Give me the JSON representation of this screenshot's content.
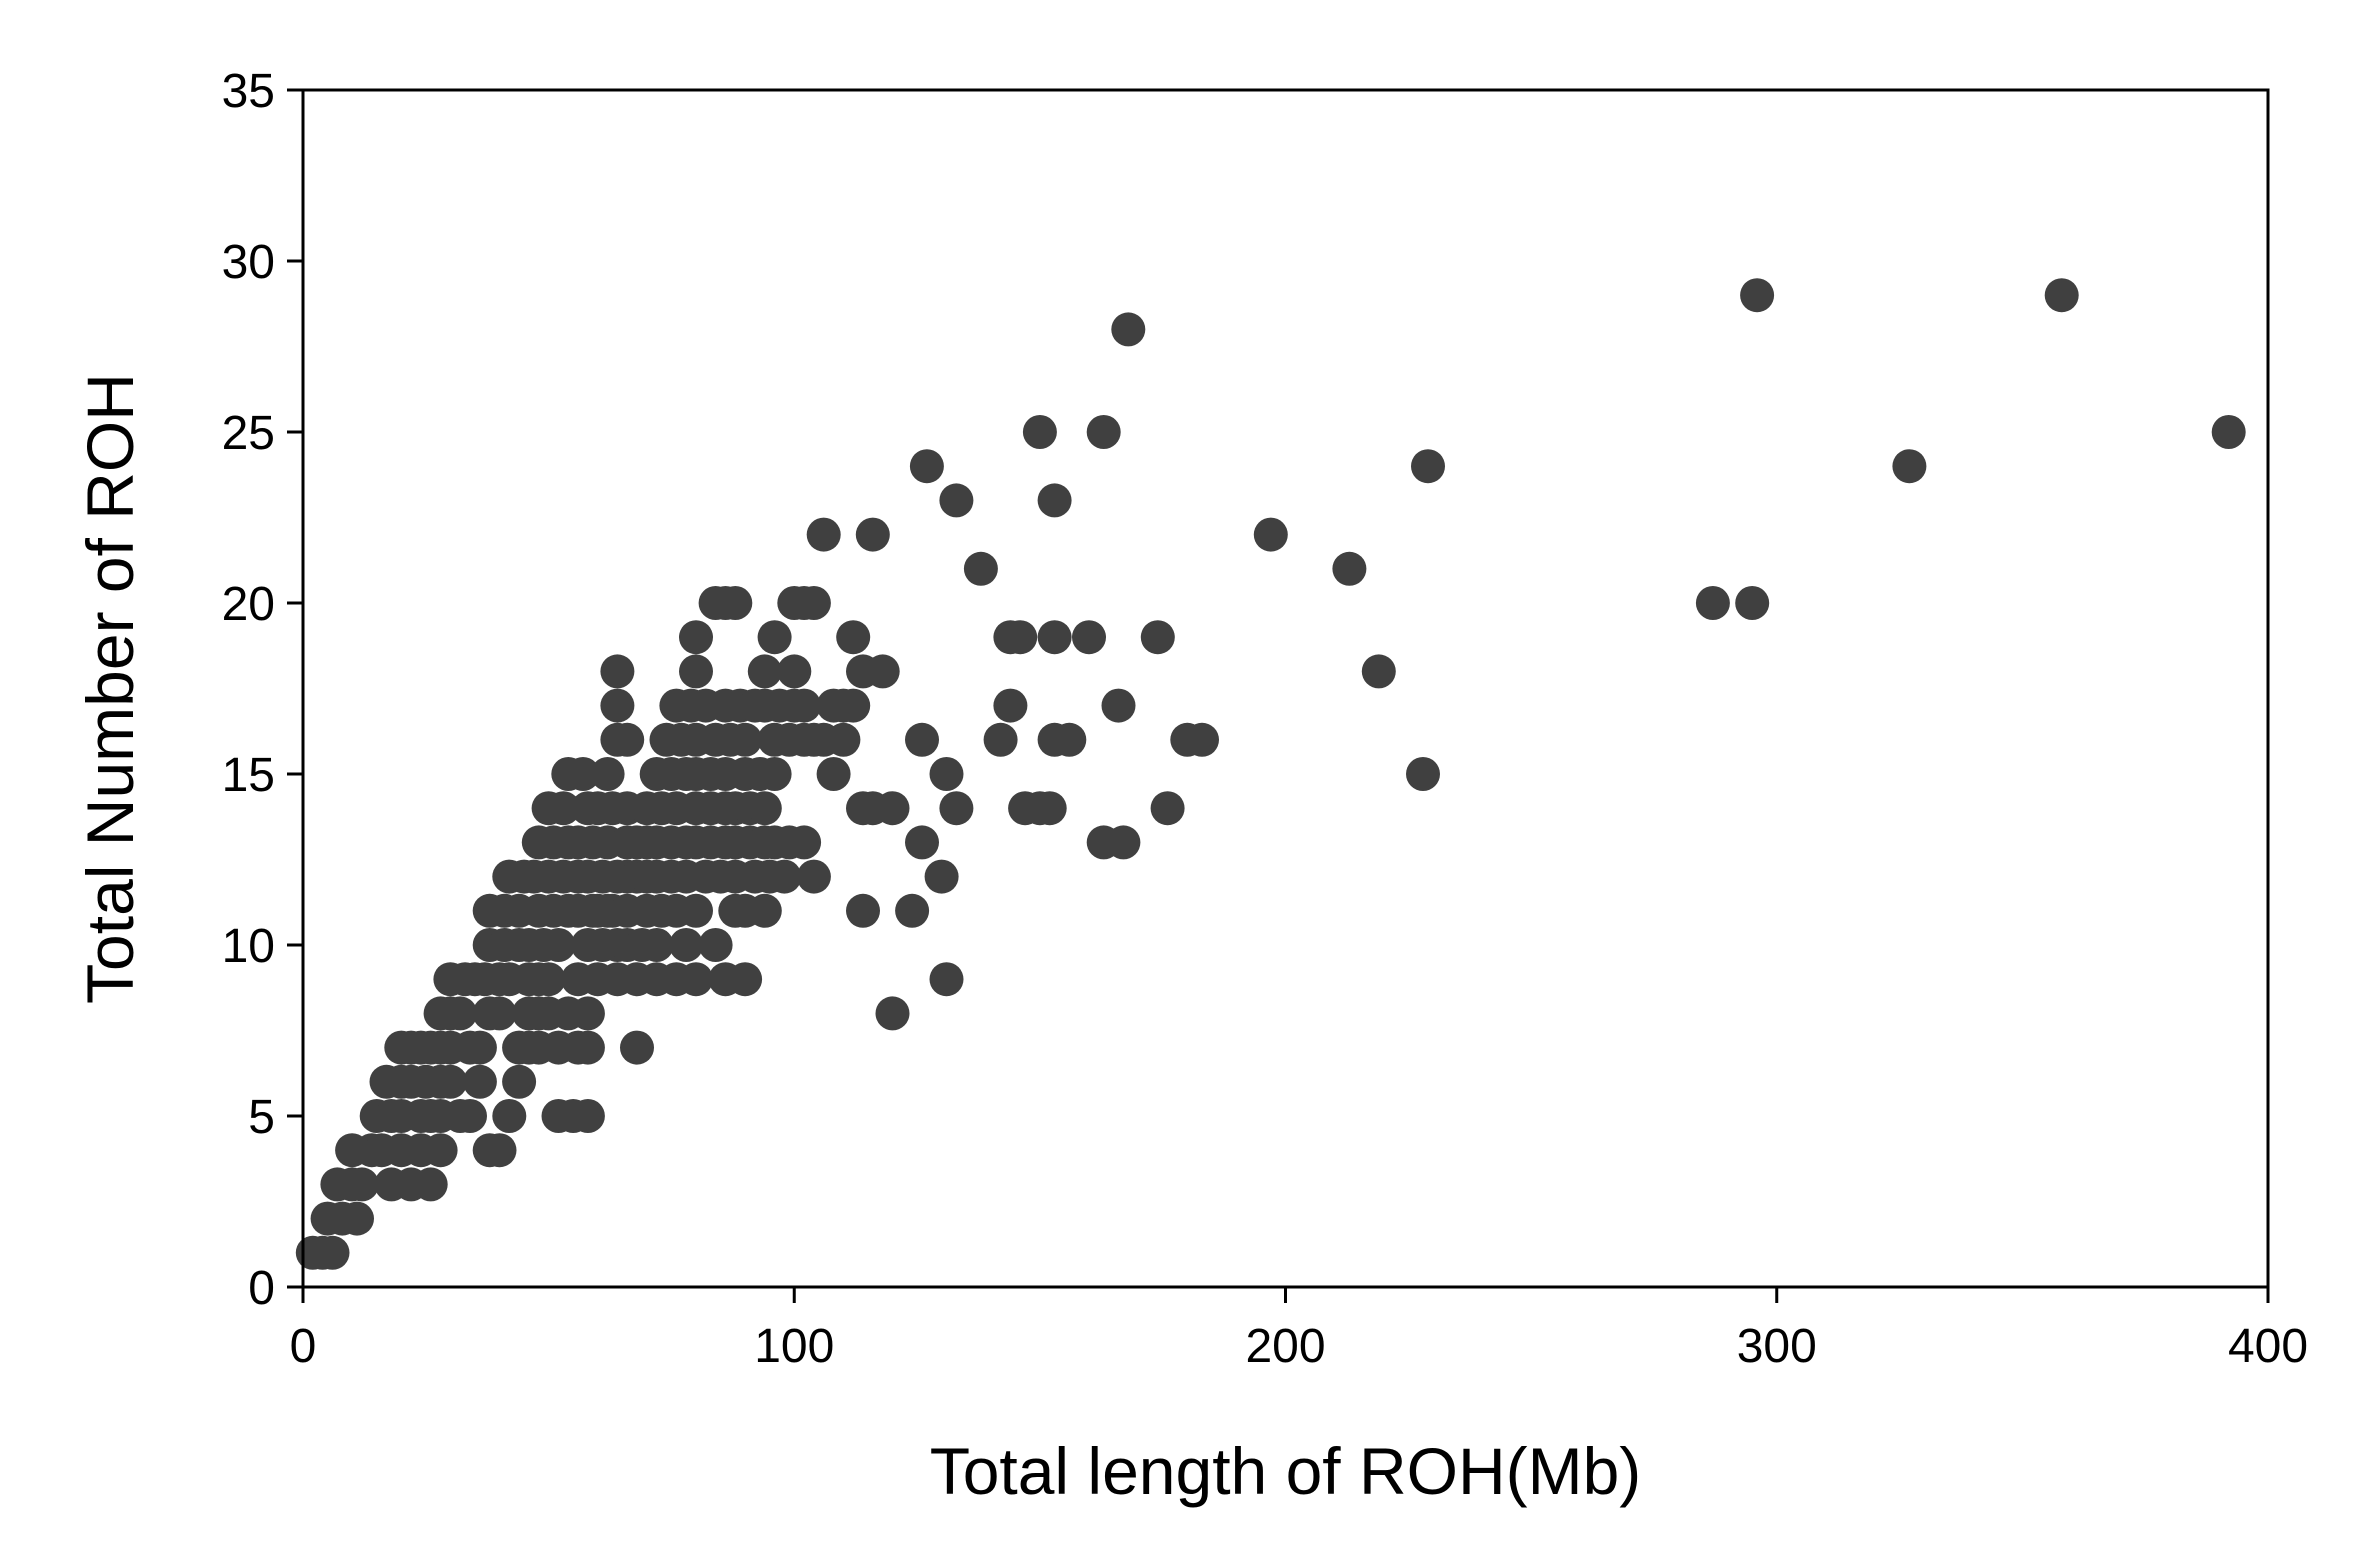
{
  "chart_data": {
    "type": "scatter",
    "title": "",
    "xlabel": "Total length of ROH(Mb)",
    "ylabel": "Total Number of ROH",
    "xlim": [
      0,
      400
    ],
    "ylim": [
      0,
      35
    ],
    "xticks": [
      0,
      100,
      200,
      300,
      400
    ],
    "yticks": [
      0,
      5,
      10,
      15,
      20,
      25,
      30,
      35
    ],
    "grid": false,
    "legend": "none",
    "marker_color": "#404040",
    "points": [
      [
        2,
        1
      ],
      [
        4,
        1
      ],
      [
        6,
        1
      ],
      [
        5,
        2
      ],
      [
        8,
        2
      ],
      [
        11,
        2
      ],
      [
        7,
        3
      ],
      [
        10,
        3
      ],
      [
        12,
        3
      ],
      [
        10,
        4
      ],
      [
        14,
        4
      ],
      [
        16,
        4
      ],
      [
        15,
        5
      ],
      [
        18,
        5
      ],
      [
        20,
        5
      ],
      [
        17,
        6
      ],
      [
        20,
        6
      ],
      [
        22,
        6
      ],
      [
        20,
        7
      ],
      [
        22,
        7
      ],
      [
        24,
        7
      ],
      [
        18,
        3
      ],
      [
        22,
        3
      ],
      [
        26,
        3
      ],
      [
        20,
        4
      ],
      [
        24,
        4
      ],
      [
        28,
        4
      ],
      [
        26,
        5
      ],
      [
        24,
        5
      ],
      [
        28,
        5
      ],
      [
        25,
        6
      ],
      [
        28,
        6
      ],
      [
        30,
        6
      ],
      [
        26,
        7
      ],
      [
        28,
        7
      ],
      [
        30,
        7
      ],
      [
        28,
        8
      ],
      [
        30,
        8
      ],
      [
        32,
        8
      ],
      [
        30,
        9
      ],
      [
        33,
        9
      ],
      [
        35,
        9
      ],
      [
        32,
        5
      ],
      [
        34,
        5
      ],
      [
        36,
        6
      ],
      [
        38,
        4
      ],
      [
        40,
        4
      ],
      [
        34,
        7
      ],
      [
        36,
        7
      ],
      [
        38,
        8
      ],
      [
        40,
        8
      ],
      [
        37,
        9
      ],
      [
        40,
        9
      ],
      [
        42,
        9
      ],
      [
        38,
        10
      ],
      [
        41,
        10
      ],
      [
        44,
        10
      ],
      [
        38,
        11
      ],
      [
        41,
        11
      ],
      [
        44,
        11
      ],
      [
        42,
        12
      ],
      [
        45,
        12
      ],
      [
        47,
        12
      ],
      [
        44,
        7
      ],
      [
        46,
        7
      ],
      [
        48,
        7
      ],
      [
        42,
        5
      ],
      [
        44,
        6
      ],
      [
        46,
        8
      ],
      [
        48,
        8
      ],
      [
        50,
        8
      ],
      [
        46,
        9
      ],
      [
        48,
        9
      ],
      [
        50,
        9
      ],
      [
        46,
        10
      ],
      [
        49,
        10
      ],
      [
        52,
        10
      ],
      [
        48,
        11
      ],
      [
        51,
        11
      ],
      [
        54,
        11
      ],
      [
        50,
        12
      ],
      [
        53,
        12
      ],
      [
        56,
        12
      ],
      [
        48,
        13
      ],
      [
        51,
        13
      ],
      [
        54,
        13
      ],
      [
        50,
        14
      ],
      [
        53,
        14
      ],
      [
        54,
        15
      ],
      [
        57,
        15
      ],
      [
        58,
        14
      ],
      [
        56,
        13
      ],
      [
        59,
        13
      ],
      [
        62,
        13
      ],
      [
        58,
        12
      ],
      [
        61,
        12
      ],
      [
        64,
        12
      ],
      [
        56,
        11
      ],
      [
        59,
        11
      ],
      [
        62,
        11
      ],
      [
        58,
        10
      ],
      [
        61,
        10
      ],
      [
        64,
        10
      ],
      [
        56,
        9
      ],
      [
        60,
        9
      ],
      [
        54,
        8
      ],
      [
        58,
        8
      ],
      [
        52,
        7
      ],
      [
        56,
        7
      ],
      [
        58,
        7
      ],
      [
        52,
        5
      ],
      [
        55,
        5
      ],
      [
        58,
        5
      ],
      [
        60,
        11
      ],
      [
        63,
        11
      ],
      [
        66,
        11
      ],
      [
        60,
        14
      ],
      [
        63,
        14
      ],
      [
        66,
        14
      ],
      [
        62,
        15
      ],
      [
        64,
        16
      ],
      [
        66,
        16
      ],
      [
        64,
        17
      ],
      [
        64,
        18
      ],
      [
        66,
        13
      ],
      [
        68,
        13
      ],
      [
        70,
        13
      ],
      [
        66,
        12
      ],
      [
        68,
        12
      ],
      [
        70,
        12
      ],
      [
        66,
        10
      ],
      [
        69,
        10
      ],
      [
        72,
        10
      ],
      [
        64,
        9
      ],
      [
        68,
        9
      ],
      [
        72,
        9
      ],
      [
        76,
        9
      ],
      [
        80,
        9
      ],
      [
        68,
        7
      ],
      [
        70,
        11
      ],
      [
        73,
        11
      ],
      [
        76,
        11
      ],
      [
        72,
        12
      ],
      [
        75,
        12
      ],
      [
        78,
        12
      ],
      [
        72,
        13
      ],
      [
        75,
        13
      ],
      [
        78,
        13
      ],
      [
        70,
        14
      ],
      [
        73,
        14
      ],
      [
        76,
        14
      ],
      [
        72,
        15
      ],
      [
        75,
        15
      ],
      [
        78,
        15
      ],
      [
        74,
        16
      ],
      [
        77,
        16
      ],
      [
        80,
        16
      ],
      [
        76,
        17
      ],
      [
        79,
        17
      ],
      [
        82,
        17
      ],
      [
        80,
        18
      ],
      [
        80,
        19
      ],
      [
        84,
        20
      ],
      [
        86,
        20
      ],
      [
        88,
        20
      ],
      [
        80,
        15
      ],
      [
        83,
        15
      ],
      [
        86,
        15
      ],
      [
        80,
        14
      ],
      [
        83,
        14
      ],
      [
        86,
        14
      ],
      [
        80,
        13
      ],
      [
        83,
        13
      ],
      [
        86,
        13
      ],
      [
        82,
        12
      ],
      [
        85,
        12
      ],
      [
        88,
        12
      ],
      [
        78,
        10
      ],
      [
        84,
        10
      ],
      [
        80,
        11
      ],
      [
        88,
        11
      ],
      [
        86,
        9
      ],
      [
        90,
        9
      ],
      [
        90,
        11
      ],
      [
        94,
        11
      ],
      [
        84,
        16
      ],
      [
        87,
        16
      ],
      [
        90,
        16
      ],
      [
        86,
        17
      ],
      [
        89,
        17
      ],
      [
        92,
        17
      ],
      [
        88,
        14
      ],
      [
        91,
        14
      ],
      [
        94,
        14
      ],
      [
        88,
        13
      ],
      [
        91,
        13
      ],
      [
        94,
        13
      ],
      [
        90,
        15
      ],
      [
        93,
        15
      ],
      [
        96,
        15
      ],
      [
        92,
        12
      ],
      [
        95,
        12
      ],
      [
        98,
        12
      ],
      [
        96,
        13
      ],
      [
        99,
        13
      ],
      [
        102,
        13
      ],
      [
        94,
        17
      ],
      [
        97,
        17
      ],
      [
        100,
        17
      ],
      [
        96,
        16
      ],
      [
        99,
        16
      ],
      [
        102,
        16
      ],
      [
        94,
        18
      ],
      [
        96,
        19
      ],
      [
        100,
        20
      ],
      [
        102,
        20
      ],
      [
        104,
        20
      ],
      [
        100,
        18
      ],
      [
        102,
        17
      ],
      [
        104,
        16
      ],
      [
        106,
        16
      ],
      [
        108,
        17
      ],
      [
        110,
        17
      ],
      [
        112,
        17
      ],
      [
        104,
        12
      ],
      [
        106,
        22
      ],
      [
        108,
        15
      ],
      [
        110,
        16
      ],
      [
        112,
        19
      ],
      [
        114,
        18
      ],
      [
        116,
        22
      ],
      [
        118,
        18
      ],
      [
        114,
        14
      ],
      [
        116,
        14
      ],
      [
        120,
        14
      ],
      [
        114,
        11
      ],
      [
        120,
        8
      ],
      [
        124,
        11
      ],
      [
        126,
        13
      ],
      [
        126,
        16
      ],
      [
        127,
        24
      ],
      [
        130,
        12
      ],
      [
        131,
        9
      ],
      [
        131,
        15
      ],
      [
        133,
        14
      ],
      [
        133,
        23
      ],
      [
        138,
        21
      ],
      [
        142,
        16
      ],
      [
        144,
        19
      ],
      [
        144,
        17
      ],
      [
        146,
        19
      ],
      [
        147,
        14
      ],
      [
        150,
        14
      ],
      [
        152,
        14
      ],
      [
        150,
        25
      ],
      [
        153,
        16
      ],
      [
        153,
        19
      ],
      [
        153,
        23
      ],
      [
        156,
        16
      ],
      [
        160,
        19
      ],
      [
        163,
        13
      ],
      [
        163,
        25
      ],
      [
        166,
        17
      ],
      [
        167,
        13
      ],
      [
        168,
        28
      ],
      [
        174,
        19
      ],
      [
        176,
        14
      ],
      [
        180,
        16
      ],
      [
        183,
        16
      ],
      [
        197,
        22
      ],
      [
        213,
        21
      ],
      [
        219,
        18
      ],
      [
        228,
        15
      ],
      [
        229,
        24
      ],
      [
        287,
        20
      ],
      [
        295,
        20
      ],
      [
        296,
        29
      ],
      [
        327,
        24
      ],
      [
        358,
        29
      ],
      [
        392,
        25
      ]
    ]
  }
}
